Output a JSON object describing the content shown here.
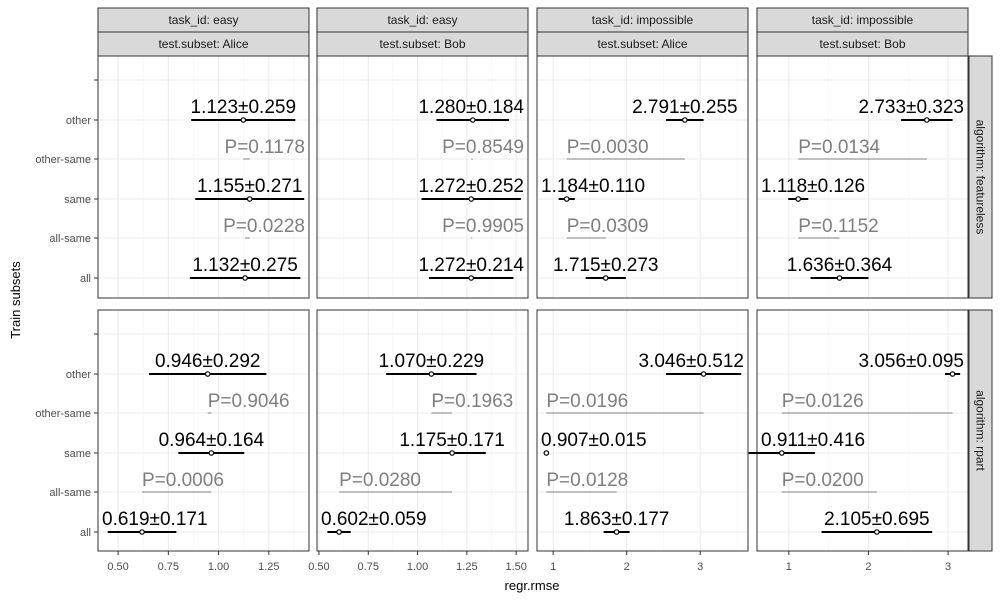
{
  "chart_data": {
    "type": "scatter",
    "xlabel": "regr.rmse",
    "ylabel": "Train subsets",
    "y_categories": [
      "all",
      "all-same",
      "same",
      "other-same",
      "other"
    ],
    "column_facets": [
      {
        "task_id": "task_id: easy",
        "test_subset": "test.subset: Alice",
        "xlim": [
          0.4,
          1.45
        ],
        "ticks": [
          0.5,
          0.75,
          1.0,
          1.25
        ],
        "tick_labels": [
          "0.50",
          "0.75",
          "1.00",
          "1.25"
        ]
      },
      {
        "task_id": "task_id: easy",
        "test_subset": "test.subset: Bob",
        "xlim": [
          0.49,
          1.56
        ],
        "ticks": [
          0.5,
          0.75,
          1.0,
          1.25,
          1.5
        ],
        "tick_labels": [
          "0.50",
          "0.75",
          "1.00",
          "1.25",
          "1.50"
        ]
      },
      {
        "task_id": "task_id: impossible",
        "test_subset": "test.subset: Alice",
        "xlim": [
          0.78,
          3.65
        ],
        "ticks": [
          1,
          2,
          3
        ],
        "tick_labels": [
          "1",
          "2",
          "3"
        ]
      },
      {
        "task_id": "task_id: impossible",
        "test_subset": "test.subset: Bob",
        "xlim": [
          0.6,
          3.25
        ],
        "ticks": [
          1,
          2,
          3
        ],
        "tick_labels": [
          "1",
          "2",
          "3"
        ]
      }
    ],
    "row_facets": [
      "algorithm: featureless",
      "algorithm: rpart"
    ],
    "panels": [
      {
        "row": 0,
        "col": 0,
        "points": [
          {
            "subset": "other",
            "mean": 1.123,
            "sd": 0.259,
            "label": "1.123±0.259"
          },
          {
            "subset": "same",
            "mean": 1.155,
            "sd": 0.271,
            "label": "1.155±0.271"
          },
          {
            "subset": "all",
            "mean": 1.132,
            "sd": 0.275,
            "label": "1.132±0.275"
          }
        ],
        "pvalues": [
          {
            "subset": "other-same",
            "from": 1.123,
            "to": 1.155,
            "label": "P=0.1178"
          },
          {
            "subset": "all-same",
            "from": 1.132,
            "to": 1.155,
            "label": "P=0.0228"
          }
        ]
      },
      {
        "row": 0,
        "col": 1,
        "points": [
          {
            "subset": "other",
            "mean": 1.28,
            "sd": 0.184,
            "label": "1.280±0.184"
          },
          {
            "subset": "same",
            "mean": 1.272,
            "sd": 0.252,
            "label": "1.272±0.252"
          },
          {
            "subset": "all",
            "mean": 1.272,
            "sd": 0.214,
            "label": "1.272±0.214"
          }
        ],
        "pvalues": [
          {
            "subset": "other-same",
            "from": 1.272,
            "to": 1.28,
            "label": "P=0.8549"
          },
          {
            "subset": "all-same",
            "from": 1.272,
            "to": 1.273,
            "label": "P=0.9905"
          }
        ]
      },
      {
        "row": 0,
        "col": 2,
        "points": [
          {
            "subset": "other",
            "mean": 2.791,
            "sd": 0.255,
            "label": "2.791±0.255"
          },
          {
            "subset": "same",
            "mean": 1.184,
            "sd": 0.11,
            "label": "1.184±0.110"
          },
          {
            "subset": "all",
            "mean": 1.715,
            "sd": 0.273,
            "label": "1.715±0.273"
          }
        ],
        "pvalues": [
          {
            "subset": "other-same",
            "from": 1.184,
            "to": 2.791,
            "label": "P=0.0030"
          },
          {
            "subset": "all-same",
            "from": 1.184,
            "to": 1.715,
            "label": "P=0.0309"
          }
        ]
      },
      {
        "row": 0,
        "col": 3,
        "points": [
          {
            "subset": "other",
            "mean": 2.733,
            "sd": 0.323,
            "label": "2.733±0.323"
          },
          {
            "subset": "same",
            "mean": 1.118,
            "sd": 0.126,
            "label": "1.118±0.126"
          },
          {
            "subset": "all",
            "mean": 1.636,
            "sd": 0.364,
            "label": "1.636±0.364"
          }
        ],
        "pvalues": [
          {
            "subset": "other-same",
            "from": 1.118,
            "to": 2.733,
            "label": "P=0.0134"
          },
          {
            "subset": "all-same",
            "from": 1.118,
            "to": 1.636,
            "label": "P=0.1152"
          }
        ]
      },
      {
        "row": 1,
        "col": 0,
        "points": [
          {
            "subset": "other",
            "mean": 0.946,
            "sd": 0.292,
            "label": "0.946±0.292"
          },
          {
            "subset": "same",
            "mean": 0.964,
            "sd": 0.164,
            "label": "0.964±0.164"
          },
          {
            "subset": "all",
            "mean": 0.619,
            "sd": 0.171,
            "label": "0.619±0.171"
          }
        ],
        "pvalues": [
          {
            "subset": "other-same",
            "from": 0.946,
            "to": 0.964,
            "label": "P=0.9046"
          },
          {
            "subset": "all-same",
            "from": 0.619,
            "to": 0.964,
            "label": "P=0.0006"
          }
        ]
      },
      {
        "row": 1,
        "col": 1,
        "points": [
          {
            "subset": "other",
            "mean": 1.07,
            "sd": 0.229,
            "label": "1.070±0.229"
          },
          {
            "subset": "same",
            "mean": 1.175,
            "sd": 0.171,
            "label": "1.175±0.171"
          },
          {
            "subset": "all",
            "mean": 0.602,
            "sd": 0.059,
            "label": "0.602±0.059"
          }
        ],
        "pvalues": [
          {
            "subset": "other-same",
            "from": 1.07,
            "to": 1.175,
            "label": "P=0.1963"
          },
          {
            "subset": "all-same",
            "from": 0.602,
            "to": 1.175,
            "label": "P=0.0280"
          }
        ]
      },
      {
        "row": 1,
        "col": 2,
        "points": [
          {
            "subset": "other",
            "mean": 3.046,
            "sd": 0.512,
            "label": "3.046±0.512"
          },
          {
            "subset": "same",
            "mean": 0.907,
            "sd": 0.015,
            "label": "0.907±0.015"
          },
          {
            "subset": "all",
            "mean": 1.863,
            "sd": 0.177,
            "label": "1.863±0.177"
          }
        ],
        "pvalues": [
          {
            "subset": "other-same",
            "from": 0.907,
            "to": 3.046,
            "label": "P=0.0196"
          },
          {
            "subset": "all-same",
            "from": 0.907,
            "to": 1.863,
            "label": "P=0.0128"
          }
        ]
      },
      {
        "row": 1,
        "col": 3,
        "points": [
          {
            "subset": "other",
            "mean": 3.056,
            "sd": 0.095,
            "label": "3.056±0.095"
          },
          {
            "subset": "same",
            "mean": 0.911,
            "sd": 0.416,
            "label": "0.911±0.416"
          },
          {
            "subset": "all",
            "mean": 2.105,
            "sd": 0.695,
            "label": "2.105±0.695"
          }
        ],
        "pvalues": [
          {
            "subset": "other-same",
            "from": 0.911,
            "to": 3.056,
            "label": "P=0.0126"
          },
          {
            "subset": "all-same",
            "from": 0.911,
            "to": 2.105,
            "label": "P=0.0200"
          }
        ]
      }
    ],
    "colors": {
      "estimate": "#000000",
      "pvalue": "#7f7f7f",
      "strip_fill": "#d9d9d9",
      "panel_border": "#333333",
      "grid_major": "#ebebeb",
      "grid_minor": "#f5f5f5",
      "tick_text": "#4d4d4d"
    },
    "grid": true,
    "legend": "none"
  }
}
